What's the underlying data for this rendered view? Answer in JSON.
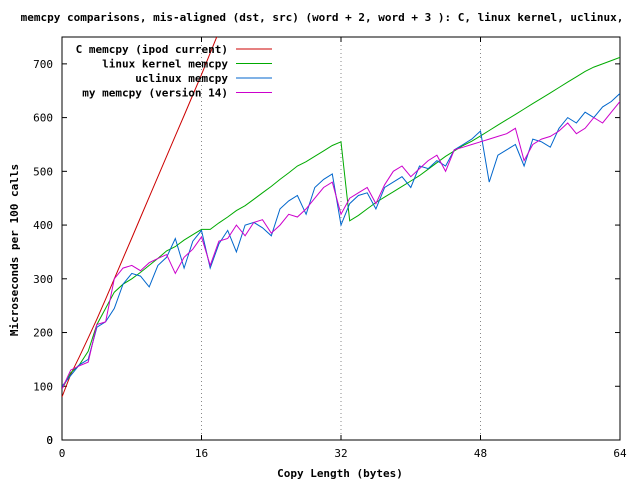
{
  "chart_data": {
    "type": "line",
    "title": "memcpy comparisons, mis-aligned (dst, src) (word + 2, word + 3 ): C, linux kernel, uclinux,",
    "xlabel": "Copy Length (bytes)",
    "ylabel": "Microseconds per 100 calls",
    "xlim": [
      0,
      64
    ],
    "ylim": [
      0,
      750
    ],
    "xticks": [
      0,
      16,
      32,
      48,
      64
    ],
    "yticks": [
      0,
      100,
      200,
      300,
      400,
      500,
      600,
      700
    ],
    "grid": "vertical dotted at 16, 32, 48",
    "legend_position": "top-left",
    "series": [
      {
        "name": "C memcpy (ipod current)",
        "color": "#cc0000",
        "x": [
          0,
          1,
          2,
          3,
          4,
          5,
          6,
          7,
          8,
          9,
          10,
          11,
          12,
          13,
          14,
          15,
          16,
          17,
          18
        ],
        "y": [
          80,
          122,
          155,
          190,
          225,
          262,
          300,
          338,
          376,
          414,
          452,
          490,
          528,
          566,
          604,
          642,
          680,
          720,
          760
        ]
      },
      {
        "name": "linux kernel memcpy",
        "color": "#00aa00",
        "x": [
          0,
          1,
          2,
          3,
          4,
          5,
          6,
          7,
          8,
          9,
          10,
          11,
          12,
          13,
          14,
          15,
          16,
          17,
          18,
          19,
          20,
          21,
          22,
          23,
          24,
          25,
          26,
          27,
          28,
          29,
          30,
          31,
          32,
          33,
          34,
          35,
          36,
          37,
          38,
          39,
          40,
          41,
          42,
          43,
          44,
          45,
          46,
          47,
          48,
          49,
          50,
          51,
          52,
          53,
          54,
          55,
          56,
          57,
          58,
          59,
          60,
          61,
          62,
          63,
          64
        ],
        "y": [
          95,
          125,
          140,
          165,
          215,
          245,
          275,
          290,
          300,
          312,
          325,
          338,
          352,
          360,
          372,
          382,
          392,
          392,
          404,
          415,
          427,
          436,
          448,
          460,
          472,
          485,
          497,
          510,
          518,
          528,
          538,
          548,
          555,
          408,
          418,
          430,
          442,
          452,
          462,
          472,
          482,
          492,
          504,
          516,
          528,
          538,
          548,
          556,
          566,
          576,
          586,
          596,
          606,
          616,
          626,
          636,
          646,
          656,
          666,
          676,
          686,
          694,
          700,
          706,
          712
        ]
      },
      {
        "name": "uclinux memcpy",
        "color": "#0066cc",
        "x": [
          0,
          1,
          2,
          3,
          4,
          5,
          6,
          7,
          8,
          9,
          10,
          11,
          12,
          13,
          14,
          15,
          16,
          17,
          18,
          19,
          20,
          21,
          22,
          23,
          24,
          25,
          26,
          27,
          28,
          29,
          30,
          31,
          32,
          33,
          34,
          35,
          36,
          37,
          38,
          39,
          40,
          41,
          42,
          43,
          44,
          45,
          46,
          47,
          48,
          49,
          50,
          51,
          52,
          53,
          54,
          55,
          56,
          57,
          58,
          59,
          60,
          61,
          62,
          63,
          64
        ],
        "y": [
          100,
          120,
          140,
          150,
          210,
          220,
          245,
          290,
          310,
          305,
          285,
          325,
          340,
          375,
          320,
          370,
          390,
          320,
          365,
          390,
          350,
          400,
          405,
          395,
          380,
          430,
          445,
          455,
          420,
          470,
          485,
          495,
          400,
          440,
          455,
          460,
          430,
          470,
          480,
          490,
          470,
          510,
          505,
          520,
          510,
          540,
          550,
          560,
          575,
          480,
          530,
          540,
          550,
          510,
          560,
          555,
          545,
          580,
          600,
          590,
          610,
          600,
          620,
          630,
          645
        ]
      },
      {
        "name": "my memcpy (version 14)",
        "color": "#cc00cc",
        "x": [
          0,
          1,
          2,
          3,
          4,
          5,
          6,
          7,
          8,
          9,
          10,
          11,
          12,
          13,
          14,
          15,
          16,
          17,
          18,
          19,
          20,
          21,
          22,
          23,
          24,
          25,
          26,
          27,
          28,
          29,
          30,
          31,
          32,
          33,
          34,
          35,
          36,
          37,
          38,
          39,
          40,
          41,
          42,
          43,
          44,
          45,
          46,
          47,
          48,
          49,
          50,
          51,
          52,
          53,
          54,
          55,
          56,
          57,
          58,
          59,
          60,
          61,
          62,
          63,
          64
        ],
        "y": [
          95,
          130,
          138,
          145,
          215,
          220,
          300,
          320,
          325,
          315,
          330,
          338,
          345,
          310,
          340,
          355,
          378,
          325,
          370,
          375,
          400,
          380,
          405,
          410,
          385,
          400,
          420,
          415,
          430,
          450,
          470,
          480,
          420,
          450,
          460,
          470,
          440,
          475,
          500,
          510,
          490,
          505,
          520,
          530,
          500,
          540,
          545,
          550,
          555,
          560,
          565,
          570,
          580,
          520,
          550,
          560,
          565,
          575,
          590,
          570,
          580,
          600,
          590,
          610,
          630
        ]
      }
    ]
  }
}
